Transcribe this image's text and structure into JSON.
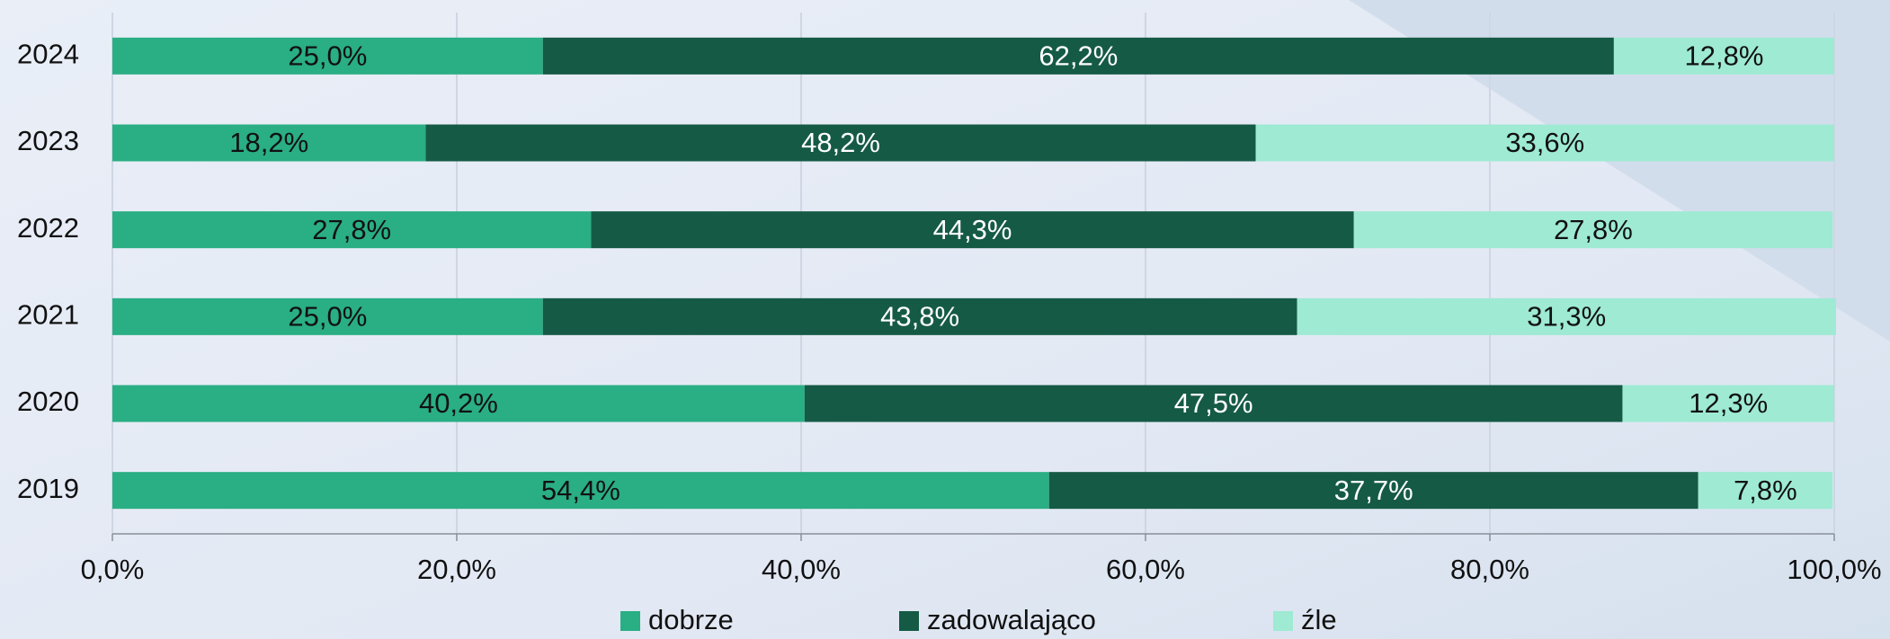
{
  "chart_data": {
    "type": "stacked_barh",
    "categories": [
      "2024",
      "2023",
      "2022",
      "2021",
      "2020",
      "2019"
    ],
    "series": [
      {
        "name": "dobrze",
        "color": "#2aae84",
        "values": [
          25.0,
          18.2,
          27.8,
          25.0,
          40.2,
          54.4
        ],
        "value_labels": [
          "25,0%",
          "18,2%",
          "27,8%",
          "25,0%",
          "40,2%",
          "54,4%"
        ]
      },
      {
        "name": "zadowalająco",
        "color": "#155a45",
        "values": [
          62.2,
          48.2,
          44.3,
          43.8,
          47.5,
          37.7
        ],
        "value_labels": [
          "62,2%",
          "48,2%",
          "44,3%",
          "43,8%",
          "47,5%",
          "37,7%"
        ]
      },
      {
        "name": "źle",
        "color": "#9eead3",
        "values": [
          12.8,
          33.6,
          27.8,
          31.3,
          12.3,
          7.8
        ],
        "value_labels": [
          "12,8%",
          "33,6%",
          "27,8%",
          "31,3%",
          "12,3%",
          "7,8%"
        ]
      }
    ],
    "xlim": [
      0,
      100
    ],
    "xticks": [
      {
        "value": 0,
        "label": "0,0%"
      },
      {
        "value": 20,
        "label": "20,0%"
      },
      {
        "value": 40,
        "label": "40,0%"
      },
      {
        "value": 60,
        "label": "60,0%"
      },
      {
        "value": 80,
        "label": "80,0%"
      },
      {
        "value": 100,
        "label": "100,0%"
      }
    ],
    "grid": true,
    "legend": "bottom"
  }
}
